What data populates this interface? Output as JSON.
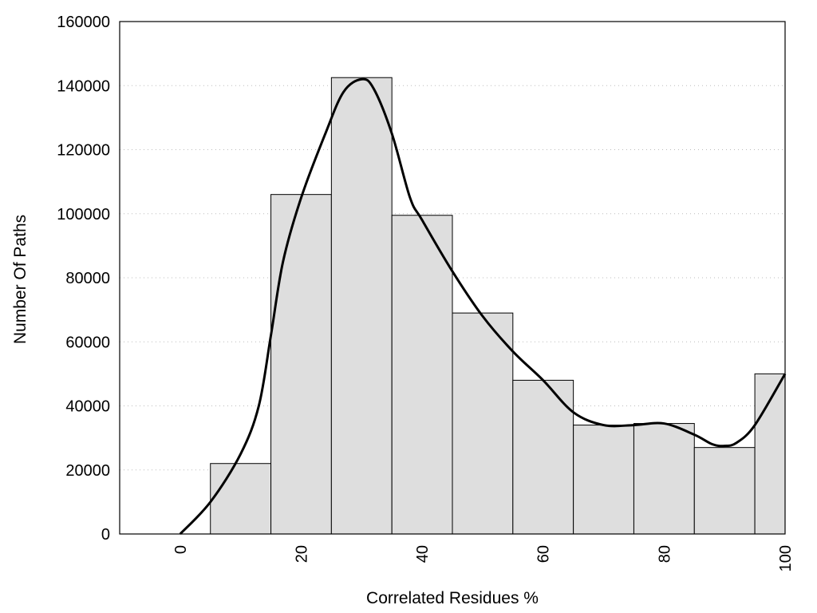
{
  "chart_data": {
    "type": "bar",
    "title": "",
    "xlabel": "Correlated Residues %",
    "ylabel": "Number Of Paths",
    "xlim": [
      -10,
      100
    ],
    "ylim": [
      0,
      160000
    ],
    "bin_width": 10,
    "x_ticks": [
      0,
      20,
      40,
      60,
      80,
      100
    ],
    "y_ticks": [
      0,
      20000,
      40000,
      60000,
      80000,
      100000,
      120000,
      140000,
      160000
    ],
    "grid": "horizontal dotted",
    "legend": "none",
    "colors": {
      "bar_fill": "#dedede",
      "bar_stroke": "#000000",
      "curve": "#000000",
      "grid": "#bbbbbb"
    },
    "bars": [
      {
        "x": 0,
        "value": 0
      },
      {
        "x": 10,
        "value": 22000
      },
      {
        "x": 20,
        "value": 106000
      },
      {
        "x": 30,
        "value": 142500
      },
      {
        "x": 40,
        "value": 99500
      },
      {
        "x": 50,
        "value": 69000
      },
      {
        "x": 60,
        "value": 48000
      },
      {
        "x": 70,
        "value": 34000
      },
      {
        "x": 80,
        "value": 34500
      },
      {
        "x": 90,
        "value": 27000
      },
      {
        "x": 100,
        "value": 50000
      }
    ],
    "curve": {
      "x": [
        0,
        5,
        10,
        13,
        15,
        17,
        20,
        24,
        27,
        30,
        32,
        35,
        38,
        40,
        45,
        50,
        55,
        60,
        65,
        70,
        75,
        80,
        85,
        88,
        90,
        92,
        95,
        100
      ],
      "y": [
        0,
        10000,
        25000,
        40000,
        62000,
        85000,
        105000,
        125000,
        138000,
        142000,
        139000,
        125000,
        105000,
        98000,
        82000,
        68000,
        57000,
        48000,
        38000,
        34000,
        34000,
        34500,
        31000,
        28000,
        27500,
        28500,
        34000,
        50000
      ]
    }
  }
}
